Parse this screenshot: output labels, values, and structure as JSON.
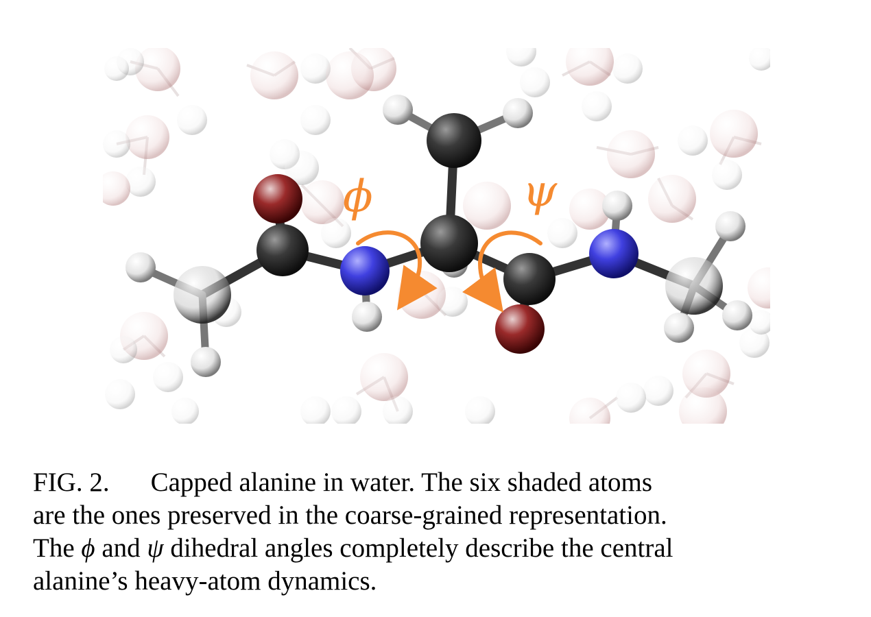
{
  "figure": {
    "angle_labels": {
      "phi": "ϕ",
      "psi": "ψ"
    },
    "colors": {
      "accent": "#f58a30",
      "carbon": "#2b2b2b",
      "nitrogen": "#3a3ad8",
      "oxygen": "#8a1515",
      "hydrogen": "#eeeeee",
      "water_oxygen": "#d9b3b3",
      "water_hydrogen": "#dddddd"
    }
  },
  "caption": {
    "label": "FIG. 2.",
    "line1": "Capped alanine in water.  The six shaded atoms",
    "line2": "are the ones preserved in the coarse-grained representation.",
    "line3_a": "The",
    "phi": "ϕ",
    "line3_b": "and",
    "psi": "ψ",
    "line3_c": "dihedral angles completely describe the central",
    "line4": "alanine’s heavy-atom dynamics."
  }
}
